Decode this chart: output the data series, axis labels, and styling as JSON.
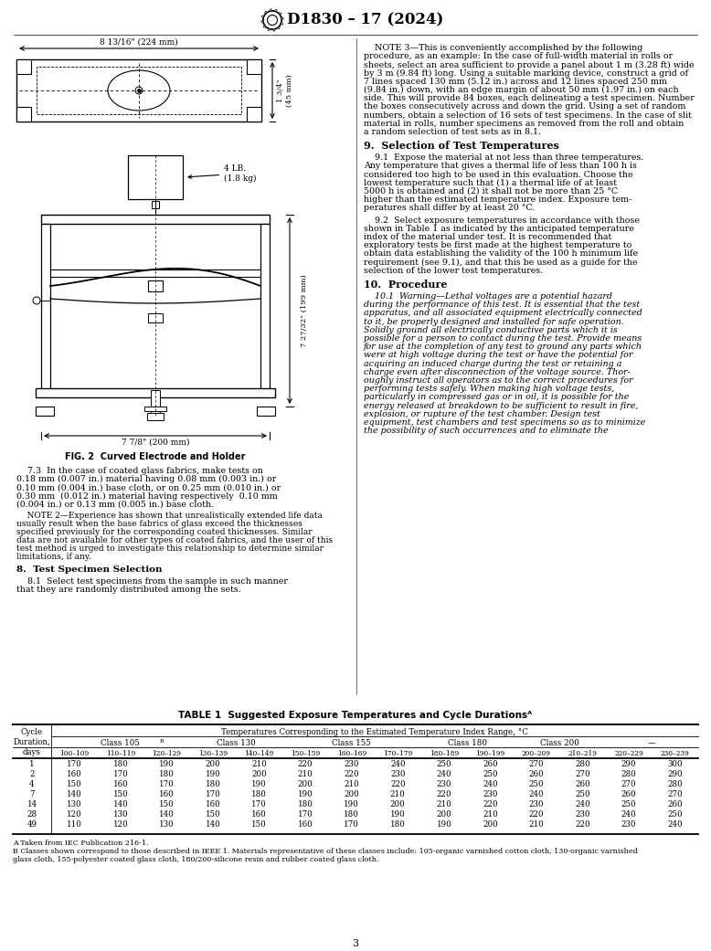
{
  "title": "D1830 – 17 (2024)",
  "page_number": "3",
  "fig_caption": "FIG. 2  Curved Electrode and Holder",
  "dim_top_width": "8 13/16\" (224 mm)",
  "dim_height_label": "1 3/4\"\n(45 mm)",
  "dim_weight_label": "4 LB.\n(1.8 kg)",
  "dim_holder_width": "7 7/8\" (200 mm)",
  "dim_holder_height": "7 27/32\" (199 mm)",
  "note3_lines": [
    "    NOTE 3—This is conveniently accomplished by the following",
    "procedure, as an example: In the case of full-width material in rolls or",
    "sheets, select an area sufficient to provide a panel about 1 m (3.28 ft) wide",
    "by 3 m (9.84 ft) long. Using a suitable marking device, construct a grid of",
    "7 lines spaced 130 mm (5.12 in.) across and 12 lines spaced 250 mm",
    "(9.84 in.) down, with an edge margin of about 50 mm (1.97 in.) on each",
    "side. This will provide 84 boxes, each delineating a test specimen. Number",
    "the boxes consecutively across and down the grid. Using a set of random",
    "numbers, obtain a selection of 16 sets of test specimens. In the case of slit",
    "material in rolls, number specimens as removed from the roll and obtain",
    "a random selection of test sets as in 8.1."
  ],
  "s9_title": "9.  Selection of Test Temperatures",
  "s91_lines": [
    "    9.1  Expose the material at not less than three temperatures.",
    "Any temperature that gives a thermal life of less than 100 h is",
    "considered too high to be used in this evaluation. Choose the",
    "lowest temperature such that (1) a thermal life of at least",
    "5000 h is obtained and (2) it shall not be more than 25 °C",
    "higher than the estimated temperature index. Exposure tem-",
    "peratures shall differ by at least 20 °C."
  ],
  "s92_lines": [
    "    9.2  Select exposure temperatures in accordance with those",
    "shown in Table 1 as indicated by the anticipated temperature",
    "index of the material under test. It is recommended that",
    "exploratory tests be first made at the highest temperature to",
    "obtain data establishing the validity of the 100 h minimum life",
    "requirement (see 9.1), and that this be used as a guide for the",
    "selection of the lower test temperatures."
  ],
  "s10_title": "10.  Procedure",
  "s101_lines": [
    "    10.1  Warning—Lethal voltages are a potential hazard",
    "during the performance of this test. It is essential that the test",
    "apparatus, and all associated equipment electrically connected",
    "to it, be properly designed and installed for safe operation.",
    "Solidly ground all electrically conductive parts which it is",
    "possible for a person to contact during the test. Provide means",
    "for use at the completion of any test to ground any parts which",
    "were at high voltage during the test or have the potential for",
    "acquiring an induced charge during the test or retaining a",
    "charge even after disconnection of the voltage source. Thor-",
    "oughly instruct all operators as to the correct procedures for",
    "performing tests safely. When making high voltage tests,",
    "particularly in compressed gas or in oil, it is possible for the",
    "energy released at breakdown to be sufficient to result in fire,",
    "explosion, or rupture of the test chamber. Design test",
    "equipment, test chambers and test specimens so as to minimize",
    "the possibility of such occurrences and to eliminate the"
  ],
  "s73_lines": [
    "    7.3  In the case of coated glass fabrics, make tests on",
    "0.18 mm (0.007 in.) material having 0.08 mm (0.003 in.) or",
    "0.10 mm (0.004 in.) base cloth, or on 0.25 mm (0.010 in.) or",
    "0.30 mm  (0.012 in.) material having respectively  0.10 mm",
    "(0.004 in.) or 0.13 mm (0.005 in.) base cloth."
  ],
  "note2_lines": [
    "    NOTE 2—Experience has shown that unrealistically extended life data",
    "usually result when the base fabrics of glass exceed the thicknesses",
    "specified previously for the corresponding coated thicknesses. Similar",
    "data are not available for other types of coated fabrics, and the user of this",
    "test method is urged to investigate this relationship to determine similar",
    "limitations, if any."
  ],
  "s8_title": "8.  Test Specimen Selection",
  "s81_lines": [
    "    8.1  Select test specimens from the sample in such manner",
    "that they are randomly distributed among the sets."
  ],
  "table_title": "TABLE 1  Suggested Exposure Temperatures and Cycle Durations",
  "col_header_temp": "Temperatures Corresponding to the Estimated Temperature Index Range, °C",
  "col_header_cycle": "Cycle\nDuration,\ndays",
  "class_spans": [
    {
      "label": "Class 105",
      "sup": "B",
      "start": 0,
      "end": 3
    },
    {
      "label": "Class 130",
      "sup": "",
      "start": 3,
      "end": 5
    },
    {
      "label": "Class 155",
      "sup": "",
      "start": 5,
      "end": 8
    },
    {
      "label": "Class 180",
      "sup": "",
      "start": 8,
      "end": 10
    },
    {
      "label": "Class 200",
      "sup": "",
      "start": 10,
      "end": 12
    },
    {
      "label": "—",
      "sup": "",
      "start": 12,
      "end": 14
    }
  ],
  "sub_headers": [
    "100–109",
    "110–119",
    "120–129",
    "130–139",
    "140–149",
    "150–159",
    "160–169",
    "170–179",
    "180–189",
    "190–199",
    "200–209",
    "210–219",
    "220–229",
    "230–239"
  ],
  "cycle_days": [
    1,
    2,
    4,
    7,
    14,
    28,
    49
  ],
  "table_data": [
    [
      170,
      180,
      190,
      200,
      210,
      220,
      230,
      240,
      250,
      260,
      270,
      280,
      290,
      300
    ],
    [
      160,
      170,
      180,
      190,
      200,
      210,
      220,
      230,
      240,
      250,
      260,
      270,
      280,
      290
    ],
    [
      150,
      160,
      170,
      180,
      190,
      200,
      210,
      220,
      230,
      240,
      250,
      260,
      270,
      280
    ],
    [
      140,
      150,
      160,
      170,
      180,
      190,
      200,
      210,
      220,
      230,
      240,
      250,
      260,
      270
    ],
    [
      130,
      140,
      150,
      160,
      170,
      180,
      190,
      200,
      210,
      220,
      230,
      240,
      250,
      260
    ],
    [
      120,
      130,
      140,
      150,
      160,
      170,
      180,
      190,
      200,
      210,
      220,
      230,
      240,
      250
    ],
    [
      110,
      120,
      130,
      140,
      150,
      160,
      170,
      180,
      190,
      200,
      210,
      220,
      230,
      240
    ]
  ],
  "fn_a": "A Taken from IEC Publication 216-1.",
  "fn_b": "B Classes shown correspond to those described in IEEE 1. Materials representative of these classes include: 105-organic varnished cotton cloth, 130-organic varnished",
  "fn_b2": "glass cloth, 155-polyester coated glass cloth, 180/200-silicone resin and rubber coated glass cloth."
}
